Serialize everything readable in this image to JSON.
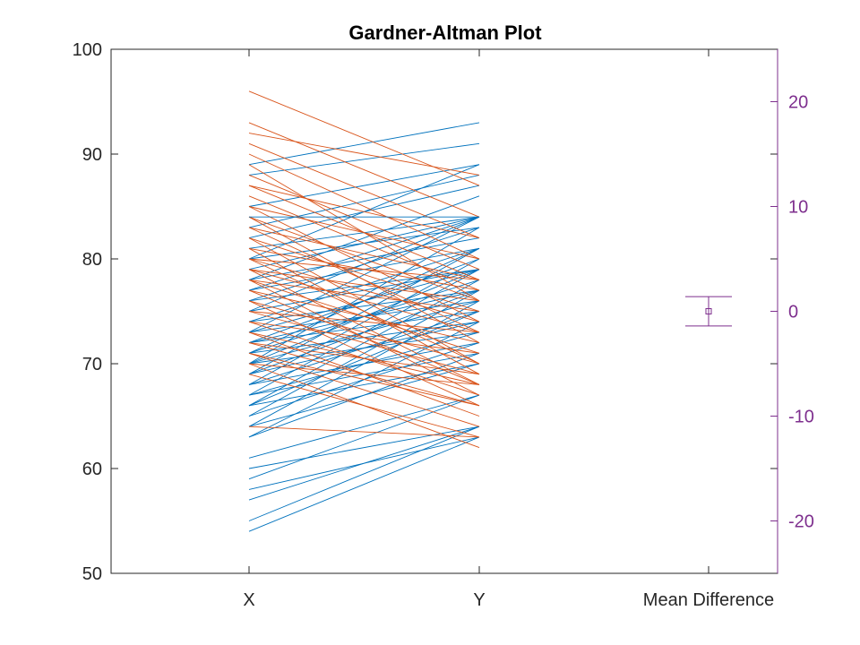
{
  "chart_data": {
    "type": "line",
    "title": "Gardner-Altman Plot",
    "categories": [
      "X",
      "Y",
      "Mean Difference"
    ],
    "left_axis": {
      "ylim": [
        50,
        100
      ],
      "ticks": [
        "50",
        "60",
        "70",
        "80",
        "90",
        "100"
      ]
    },
    "right_axis": {
      "ylim": [
        -25,
        25
      ],
      "ticks": [
        "-20",
        "-10",
        "0",
        "10",
        "20"
      ],
      "color": "#7E2F8E"
    },
    "grid": false,
    "colors": {
      "increase": "#0072BD",
      "decrease": "#D95319",
      "difference": "#7E2F8E"
    },
    "pairs": [
      [
        54,
        63
      ],
      [
        55,
        64
      ],
      [
        57,
        64
      ],
      [
        58,
        63
      ],
      [
        59,
        67
      ],
      [
        60,
        64
      ],
      [
        61,
        67
      ],
      [
        63,
        71
      ],
      [
        63,
        74
      ],
      [
        64,
        70
      ],
      [
        64,
        76
      ],
      [
        65,
        72
      ],
      [
        65,
        77
      ],
      [
        66,
        70
      ],
      [
        66,
        75
      ],
      [
        66,
        78
      ],
      [
        67,
        71
      ],
      [
        67,
        73
      ],
      [
        67,
        79
      ],
      [
        68,
        72
      ],
      [
        68,
        75
      ],
      [
        68,
        80
      ],
      [
        69,
        74
      ],
      [
        69,
        77
      ],
      [
        69,
        81
      ],
      [
        70,
        73
      ],
      [
        70,
        76
      ],
      [
        70,
        79
      ],
      [
        70,
        83
      ],
      [
        71,
        74
      ],
      [
        71,
        78
      ],
      [
        71,
        81
      ],
      [
        72,
        75
      ],
      [
        72,
        77
      ],
      [
        72,
        80
      ],
      [
        73,
        76
      ],
      [
        73,
        79
      ],
      [
        73,
        84
      ],
      [
        74,
        77
      ],
      [
        74,
        81
      ],
      [
        75,
        79
      ],
      [
        75,
        84
      ],
      [
        76,
        79
      ],
      [
        76,
        83
      ],
      [
        77,
        81
      ],
      [
        77,
        84
      ],
      [
        78,
        82
      ],
      [
        78,
        86
      ],
      [
        79,
        84
      ],
      [
        80,
        83
      ],
      [
        80,
        89
      ],
      [
        81,
        84
      ],
      [
        82,
        87
      ],
      [
        83,
        88
      ],
      [
        85,
        89
      ],
      [
        88,
        91
      ],
      [
        89,
        93
      ],
      [
        96,
        87
      ],
      [
        93,
        84
      ],
      [
        92,
        88
      ],
      [
        91,
        82
      ],
      [
        90,
        80
      ],
      [
        89,
        76
      ],
      [
        88,
        79
      ],
      [
        87,
        78
      ],
      [
        87,
        82
      ],
      [
        86,
        77
      ],
      [
        85,
        74
      ],
      [
        85,
        80
      ],
      [
        84,
        72
      ],
      [
        84,
        76
      ],
      [
        84,
        84
      ],
      [
        83,
        73
      ],
      [
        83,
        78
      ],
      [
        82,
        70
      ],
      [
        82,
        75
      ],
      [
        81,
        69
      ],
      [
        81,
        77
      ],
      [
        80,
        70
      ],
      [
        80,
        74
      ],
      [
        80,
        78
      ],
      [
        79,
        68
      ],
      [
        79,
        73
      ],
      [
        79,
        76
      ],
      [
        78,
        67
      ],
      [
        78,
        71
      ],
      [
        78,
        75
      ],
      [
        77,
        68
      ],
      [
        77,
        72
      ],
      [
        76,
        66
      ],
      [
        76,
        70
      ],
      [
        75,
        69
      ],
      [
        75,
        73
      ],
      [
        74,
        67
      ],
      [
        74,
        71
      ],
      [
        73,
        68
      ],
      [
        73,
        65
      ],
      [
        72,
        66
      ],
      [
        72,
        69
      ],
      [
        71,
        66
      ],
      [
        71,
        64
      ],
      [
        70,
        68
      ],
      [
        69,
        63
      ],
      [
        64,
        63
      ],
      [
        70,
        62
      ]
    ],
    "mean_difference": {
      "mean": 0,
      "ci": [
        -1.4,
        1.4
      ]
    }
  }
}
